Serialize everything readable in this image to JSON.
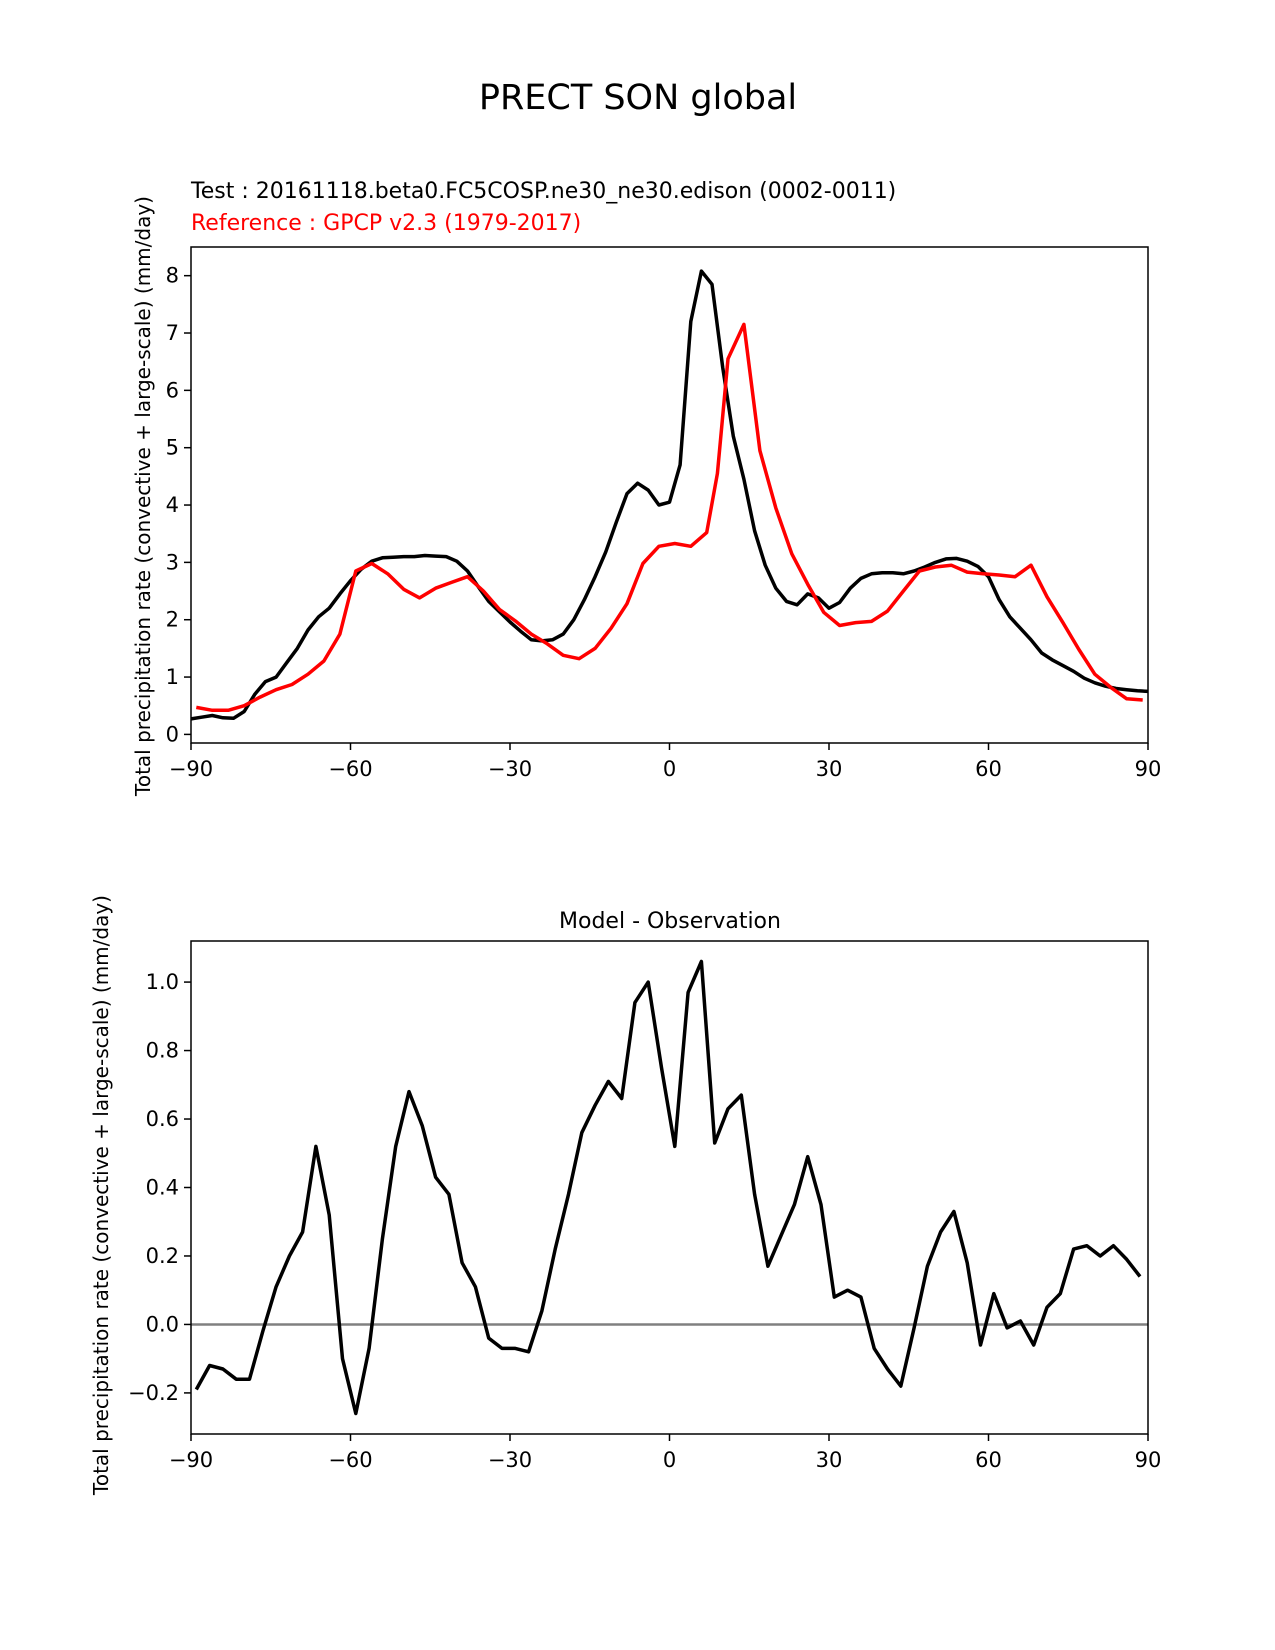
{
  "figure": {
    "title": "PRECT SON global",
    "test_label": "Test : 20161118.beta0.FC5COSP.ne30_ne30.edison (0002-0011)",
    "ref_label": "Reference : GPCP v2.3 (1979-2017)"
  },
  "colors": {
    "test": "#000000",
    "reference": "#ff0000",
    "zero_line": "#808080"
  },
  "chart_data": [
    {
      "type": "line",
      "title": "",
      "xlabel": "",
      "ylabel": "Total precipitation rate (convective + large-scale) (mm/day)",
      "xlim": [
        -90,
        90
      ],
      "ylim": [
        -0.15,
        8.5
      ],
      "xticks": [
        -90,
        -60,
        -30,
        0,
        30,
        60,
        90
      ],
      "xtick_labels": [
        "−90",
        "−60",
        "−30",
        "0",
        "30",
        "60",
        "90"
      ],
      "yticks": [
        0,
        1,
        2,
        3,
        4,
        5,
        6,
        7,
        8
      ],
      "ytick_labels": [
        "0",
        "1",
        "2",
        "3",
        "4",
        "5",
        "6",
        "7",
        "8"
      ],
      "grid": false,
      "series": [
        {
          "name": "Test",
          "color": "#000000",
          "x": [
            -90,
            -88,
            -86,
            -84,
            -82,
            -80,
            -78,
            -76,
            -74,
            -72,
            -70,
            -68,
            -66,
            -64,
            -62,
            -60,
            -58,
            -56,
            -54,
            -52,
            -50,
            -48,
            -46,
            -44,
            -42,
            -40,
            -38,
            -36,
            -34,
            -32,
            -30,
            -28,
            -26,
            -24,
            -22,
            -20,
            -18,
            -16,
            -14,
            -12,
            -10,
            -8,
            -6,
            -4,
            -2,
            0,
            2,
            4,
            6,
            8,
            10,
            12,
            14,
            16,
            18,
            20,
            22,
            24,
            26,
            28,
            30,
            32,
            34,
            36,
            38,
            40,
            42,
            44,
            46,
            48,
            50,
            52,
            54,
            56,
            58,
            60,
            62,
            64,
            66,
            68,
            70,
            72,
            74,
            76,
            78,
            80,
            82,
            84,
            86,
            88,
            90
          ],
          "y": [
            0.27,
            0.3,
            0.33,
            0.29,
            0.28,
            0.4,
            0.7,
            0.92,
            1.0,
            1.25,
            1.5,
            1.82,
            2.05,
            2.2,
            2.45,
            2.68,
            2.88,
            3.02,
            3.08,
            3.09,
            3.1,
            3.1,
            3.12,
            3.11,
            3.1,
            3.02,
            2.85,
            2.58,
            2.32,
            2.14,
            1.96,
            1.8,
            1.65,
            1.63,
            1.65,
            1.75,
            2.0,
            2.35,
            2.75,
            3.18,
            3.7,
            4.2,
            4.38,
            4.26,
            4.0,
            4.05,
            4.7,
            7.2,
            8.08,
            7.85,
            6.4,
            5.2,
            4.45,
            3.55,
            2.95,
            2.55,
            2.32,
            2.26,
            2.45,
            2.38,
            2.2,
            2.3,
            2.55,
            2.72,
            2.8,
            2.82,
            2.82,
            2.8,
            2.85,
            2.92,
            3.0,
            3.06,
            3.07,
            3.02,
            2.93,
            2.75,
            2.35,
            2.05,
            1.85,
            1.65,
            1.42,
            1.3,
            1.2,
            1.1,
            0.98,
            0.9,
            0.84,
            0.8,
            0.78,
            0.76,
            0.75
          ]
        },
        {
          "name": "Reference",
          "color": "#ff0000",
          "x": [
            -89,
            -86,
            -83,
            -80,
            -77,
            -74,
            -71,
            -68,
            -65,
            -62,
            -59,
            -56,
            -53,
            -50,
            -47,
            -44,
            -41,
            -38,
            -35,
            -32,
            -29,
            -26,
            -23,
            -20,
            -17,
            -14,
            -11,
            -8,
            -5,
            -2,
            1,
            4,
            7,
            9,
            11,
            14,
            17,
            20,
            23,
            26,
            29,
            32,
            35,
            38,
            41,
            44,
            47,
            50,
            53,
            56,
            59,
            62,
            65,
            68,
            71,
            74,
            77,
            80,
            83,
            86,
            89
          ],
          "y": [
            0.47,
            0.42,
            0.42,
            0.5,
            0.65,
            0.78,
            0.87,
            1.05,
            1.28,
            1.75,
            2.85,
            2.98,
            2.8,
            2.53,
            2.38,
            2.55,
            2.65,
            2.75,
            2.5,
            2.18,
            1.98,
            1.75,
            1.58,
            1.38,
            1.32,
            1.5,
            1.85,
            2.28,
            2.98,
            3.28,
            3.33,
            3.28,
            3.52,
            4.55,
            6.55,
            7.15,
            4.95,
            3.95,
            3.15,
            2.62,
            2.13,
            1.9,
            1.95,
            1.97,
            2.15,
            2.5,
            2.85,
            2.92,
            2.95,
            2.83,
            2.8,
            2.78,
            2.75,
            2.95,
            2.4,
            1.95,
            1.48,
            1.05,
            0.82,
            0.62,
            0.6
          ]
        }
      ]
    },
    {
      "type": "line",
      "title": "Model - Observation",
      "xlabel": "",
      "ylabel": "Total precipitation rate (convective + large-scale) (mm/day)",
      "xlim": [
        -90,
        90
      ],
      "ylim": [
        -0.32,
        1.12
      ],
      "xticks": [
        -90,
        -60,
        -30,
        0,
        30,
        60,
        90
      ],
      "xtick_labels": [
        "−90",
        "−60",
        "−30",
        "0",
        "30",
        "60",
        "90"
      ],
      "yticks": [
        -0.2,
        0.0,
        0.2,
        0.4,
        0.6,
        0.8,
        1.0
      ],
      "ytick_labels": [
        "−0.2",
        "0.0",
        "0.2",
        "0.4",
        "0.6",
        "0.8",
        "1.0"
      ],
      "grid": false,
      "reference_line": {
        "y": 0,
        "color": "#808080"
      },
      "series": [
        {
          "name": "Model - Observation",
          "color": "#000000",
          "x": [
            -89,
            -86.5,
            -84,
            -81.5,
            -79,
            -76.5,
            -74,
            -71.5,
            -69,
            -66.5,
            -64,
            -61.5,
            -59,
            -56.5,
            -54,
            -51.5,
            -49,
            -46.5,
            -44,
            -41.5,
            -39,
            -36.5,
            -34,
            -31.5,
            -29,
            -26.5,
            -24,
            -21.5,
            -19,
            -16.5,
            -14,
            -11.5,
            -9,
            -6.5,
            -4,
            -1.5,
            1,
            3.5,
            6,
            8.5,
            11,
            13.5,
            16,
            18.5,
            21,
            23.5,
            26,
            28.5,
            31,
            33.5,
            36,
            38.5,
            41,
            43.5,
            46,
            48.5,
            51,
            53.5,
            56,
            58.5,
            61,
            63.5,
            66,
            68.5,
            71,
            73.5,
            76,
            78.5,
            81,
            83.5,
            86,
            88.5
          ],
          "y": [
            -0.19,
            -0.12,
            -0.13,
            -0.16,
            -0.16,
            -0.02,
            0.11,
            0.2,
            0.27,
            0.52,
            0.32,
            -0.1,
            -0.26,
            -0.07,
            0.25,
            0.52,
            0.68,
            0.58,
            0.43,
            0.38,
            0.18,
            0.11,
            -0.04,
            -0.07,
            -0.07,
            -0.08,
            0.04,
            0.22,
            0.38,
            0.56,
            0.64,
            0.71,
            0.66,
            0.94,
            1.0,
            0.75,
            0.52,
            0.97,
            1.06,
            0.53,
            0.63,
            0.67,
            0.38,
            0.17,
            0.26,
            0.35,
            0.49,
            0.35,
            0.08,
            0.1,
            0.08,
            -0.07,
            -0.13,
            -0.18,
            -0.01,
            0.17,
            0.27,
            0.33,
            0.18,
            -0.06,
            0.09,
            -0.01,
            0.01,
            -0.06,
            0.05,
            0.09,
            0.22,
            0.23,
            0.2,
            0.23,
            0.19,
            0.14
          ]
        }
      ]
    }
  ]
}
